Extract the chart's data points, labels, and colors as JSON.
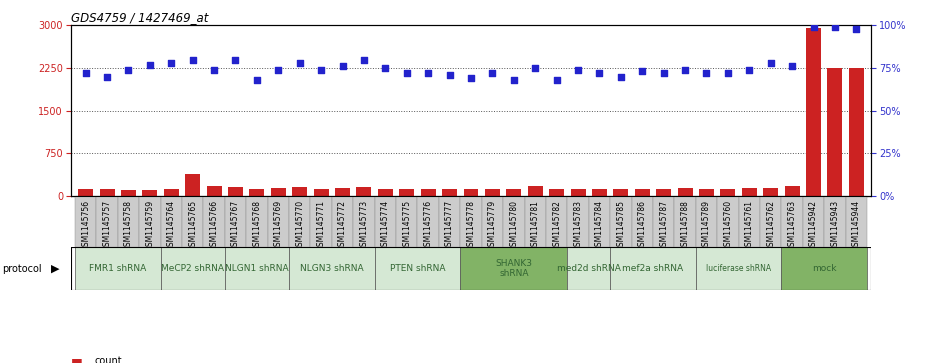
{
  "title": "GDS4759 / 1427469_at",
  "samples": [
    "GSM1145756",
    "GSM1145757",
    "GSM1145758",
    "GSM1145759",
    "GSM1145764",
    "GSM1145765",
    "GSM1145766",
    "GSM1145767",
    "GSM1145768",
    "GSM1145769",
    "GSM1145770",
    "GSM1145771",
    "GSM1145772",
    "GSM1145773",
    "GSM1145774",
    "GSM1145775",
    "GSM1145776",
    "GSM1145777",
    "GSM1145778",
    "GSM1145779",
    "GSM1145780",
    "GSM1145781",
    "GSM1145782",
    "GSM1145783",
    "GSM1145784",
    "GSM1145785",
    "GSM1145786",
    "GSM1145787",
    "GSM1145788",
    "GSM1145789",
    "GSM1145760",
    "GSM1145761",
    "GSM1145762",
    "GSM1145763",
    "GSM1145942",
    "GSM1145943",
    "GSM1145944"
  ],
  "counts": [
    130,
    120,
    110,
    105,
    130,
    390,
    170,
    150,
    130,
    135,
    150,
    120,
    135,
    160,
    115,
    120,
    120,
    125,
    115,
    115,
    120,
    180,
    115,
    130,
    115,
    120,
    130,
    120,
    135,
    120,
    120,
    140,
    140,
    175,
    2950,
    2250,
    2250
  ],
  "percentiles": [
    72,
    70,
    74,
    77,
    78,
    80,
    74,
    80,
    68,
    74,
    78,
    74,
    76,
    80,
    75,
    72,
    72,
    71,
    69,
    72,
    68,
    75,
    68,
    74,
    72,
    70,
    73,
    72,
    74,
    72,
    72,
    74,
    78,
    76,
    99,
    99,
    98
  ],
  "protocols": [
    {
      "label": "FMR1 shRNA",
      "start": 0,
      "end": 4,
      "color": "#d5e8d4",
      "text_color": "#336633"
    },
    {
      "label": "MeCP2 shRNA",
      "start": 4,
      "end": 7,
      "color": "#d5e8d4",
      "text_color": "#336633"
    },
    {
      "label": "NLGN1 shRNA",
      "start": 7,
      "end": 10,
      "color": "#d5e8d4",
      "text_color": "#336633"
    },
    {
      "label": "NLGN3 shRNA",
      "start": 10,
      "end": 14,
      "color": "#d5e8d4",
      "text_color": "#336633"
    },
    {
      "label": "PTEN shRNA",
      "start": 14,
      "end": 18,
      "color": "#d5e8d4",
      "text_color": "#336633"
    },
    {
      "label": "SHANK3\nshRNA",
      "start": 18,
      "end": 23,
      "color": "#82b366",
      "text_color": "#336633"
    },
    {
      "label": "med2d shRNA",
      "start": 23,
      "end": 25,
      "color": "#d5e8d4",
      "text_color": "#336633"
    },
    {
      "label": "mef2a shRNA",
      "start": 25,
      "end": 29,
      "color": "#d5e8d4",
      "text_color": "#336633"
    },
    {
      "label": "luciferase shRNA",
      "start": 29,
      "end": 33,
      "color": "#d5e8d4",
      "text_color": "#336633"
    },
    {
      "label": "mock",
      "start": 33,
      "end": 37,
      "color": "#82b366",
      "text_color": "#336633"
    }
  ],
  "left_ylim": [
    0,
    3000
  ],
  "right_ylim": [
    0,
    100
  ],
  "left_yticks": [
    0,
    750,
    1500,
    2250,
    3000
  ],
  "right_yticks": [
    0,
    25,
    50,
    75,
    100
  ],
  "bar_color": "#cc2222",
  "dot_color": "#2222cc",
  "bg_color": "#ffffff",
  "tick_bg_color": "#cccccc",
  "tick_border_color": "#888888",
  "dotted_line_color": "#555555"
}
